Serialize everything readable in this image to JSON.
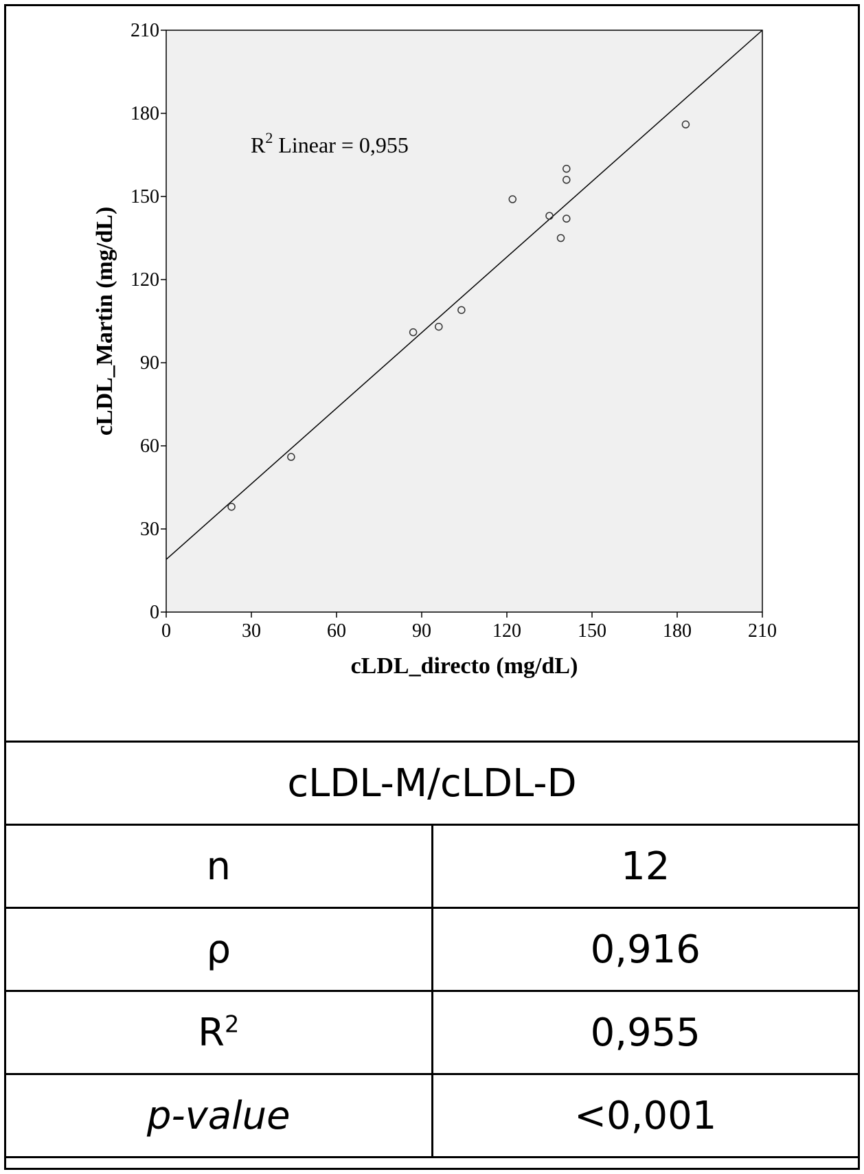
{
  "chart_data": {
    "type": "scatter",
    "xlabel": "cLDL_directo (mg/dL)",
    "ylabel": "cLDL_Martin (mg/dL)",
    "xlim": [
      0,
      210
    ],
    "ylim": [
      0,
      210
    ],
    "xticks": [
      0,
      30,
      60,
      90,
      120,
      150,
      180,
      210
    ],
    "yticks": [
      0,
      30,
      60,
      90,
      120,
      150,
      180,
      210
    ],
    "grid": false,
    "series": [
      {
        "points": [
          {
            "x": 23,
            "y": 38
          },
          {
            "x": 44,
            "y": 56
          },
          {
            "x": 87,
            "y": 101
          },
          {
            "x": 96,
            "y": 103
          },
          {
            "x": 104,
            "y": 109
          },
          {
            "x": 122,
            "y": 149
          },
          {
            "x": 135,
            "y": 143
          },
          {
            "x": 139,
            "y": 135
          },
          {
            "x": 141,
            "y": 142
          },
          {
            "x": 141,
            "y": 156
          },
          {
            "x": 141,
            "y": 160
          },
          {
            "x": 183,
            "y": 176
          }
        ]
      }
    ],
    "fit_line": {
      "x1": 0,
      "y1": 19,
      "x2": 210,
      "y2": 210
    },
    "annotation": {
      "prefix": "R",
      "sup": "2",
      "suffix": " Linear = 0,955"
    }
  },
  "stats_table": {
    "header": "cLDL-M/cLDL-D",
    "rows": [
      {
        "label": "n",
        "value": "12"
      },
      {
        "label": "ρ",
        "value": "0,916"
      },
      {
        "label_base": "R",
        "label_sup": "2",
        "value": "0,955"
      },
      {
        "label": "p-value",
        "value": "<0,001"
      }
    ]
  },
  "colors": {
    "plot_bg": "#f0f0f0",
    "ink": "#000000",
    "marker": "#333333"
  }
}
